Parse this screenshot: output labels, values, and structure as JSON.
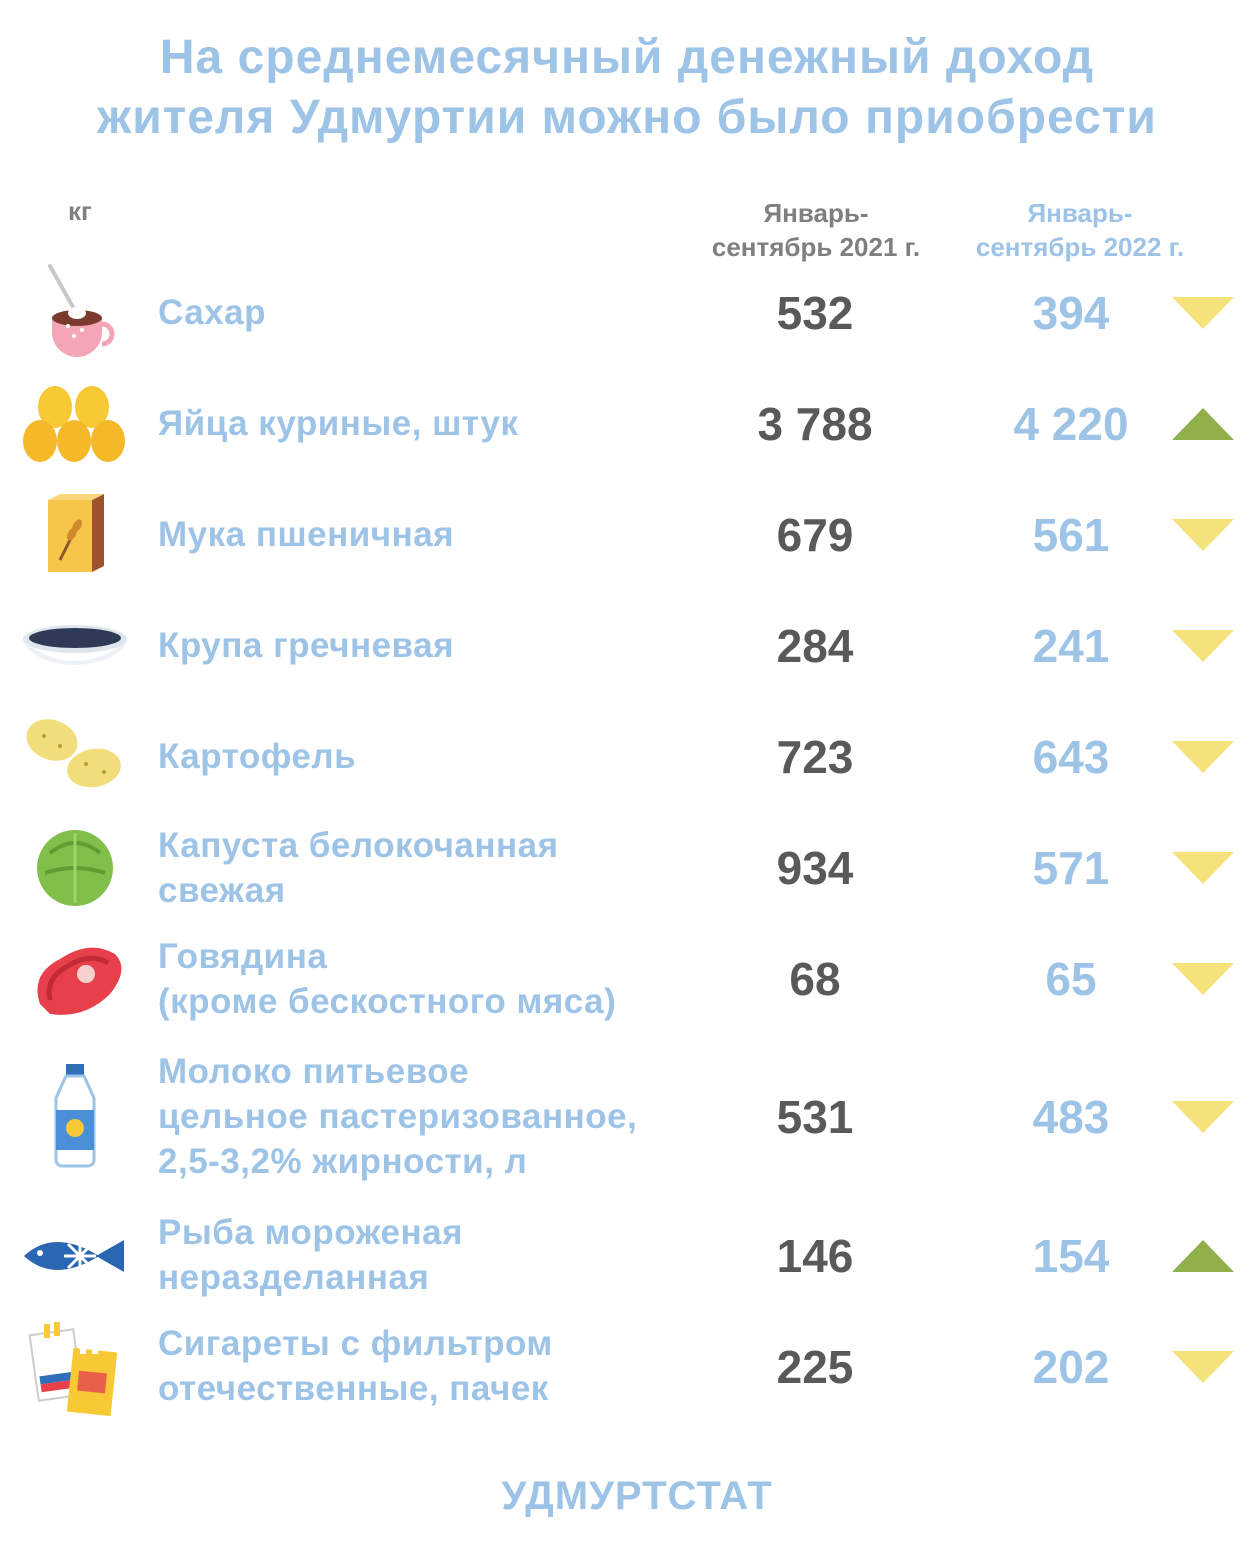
{
  "title": {
    "line1": "На среднемесячный денежный доход",
    "line2": "жителя Удмуртии можно было приобрести"
  },
  "unit_label": "кг",
  "columns": {
    "period_2021": "Январь-\nсентябрь 2021 г.",
    "period_2022": "Январь-\nсентябрь 2022 г."
  },
  "colors": {
    "title": "#9dc3e6",
    "value_2021": "#595959",
    "value_2022": "#9dc3e6",
    "trend_down": "#f5e27a",
    "trend_up": "#8fb04a"
  },
  "source": "УДМУРТСТАТ",
  "chart_data": {
    "type": "table",
    "title": "На среднемесячный денежный доход жителя Удмуртии можно было приобрести",
    "unit": "кг",
    "series": [
      {
        "name": "Январь-сентябрь 2021 г.",
        "values": [
          532,
          3788,
          679,
          284,
          723,
          934,
          68,
          531,
          146,
          225
        ]
      },
      {
        "name": "Январь-сентябрь 2022 г.",
        "values": [
          394,
          4220,
          561,
          241,
          643,
          571,
          65,
          483,
          154,
          202
        ]
      }
    ],
    "rows": [
      {
        "icon": "sugar-cup-icon",
        "label": "Сахар",
        "v2021": "532",
        "v2022": "394",
        "trend": "down"
      },
      {
        "icon": "eggs-icon",
        "label": "Яйца куриные,  штук",
        "v2021": "3 788",
        "v2022": "4 220",
        "trend": "up"
      },
      {
        "icon": "flour-bag-icon",
        "label": "Мука пшеничная",
        "v2021": "679",
        "v2022": "561",
        "trend": "down"
      },
      {
        "icon": "buckwheat-bowl-icon",
        "label": "Крупа гречневая",
        "v2021": "284",
        "v2022": "241",
        "trend": "down"
      },
      {
        "icon": "potatoes-icon",
        "label": "Картофель",
        "v2021": "723",
        "v2022": "643",
        "trend": "down"
      },
      {
        "icon": "cabbage-icon",
        "label": "Капуста белокочанная\nсвежая",
        "v2021": "934",
        "v2022": "571",
        "trend": "down"
      },
      {
        "icon": "beef-steak-icon",
        "label": "Говядина\n(кроме бескостного мяса)",
        "v2021": "68",
        "v2022": "65",
        "trend": "down"
      },
      {
        "icon": "milk-bottle-icon",
        "label": "Молоко питьевое\nцельное пастеризованное,\n2,5-3,2% жирности, л",
        "v2021": "531",
        "v2022": "483",
        "trend": "down"
      },
      {
        "icon": "frozen-fish-icon",
        "label": "Рыба мороженая\nнеразделанная",
        "v2021": "146",
        "v2022": "154",
        "trend": "up"
      },
      {
        "icon": "cigarettes-icon",
        "label": "Сигареты с фильтром\nотечественные, пачек",
        "v2021": "225",
        "v2022": "202",
        "trend": "down"
      }
    ]
  }
}
